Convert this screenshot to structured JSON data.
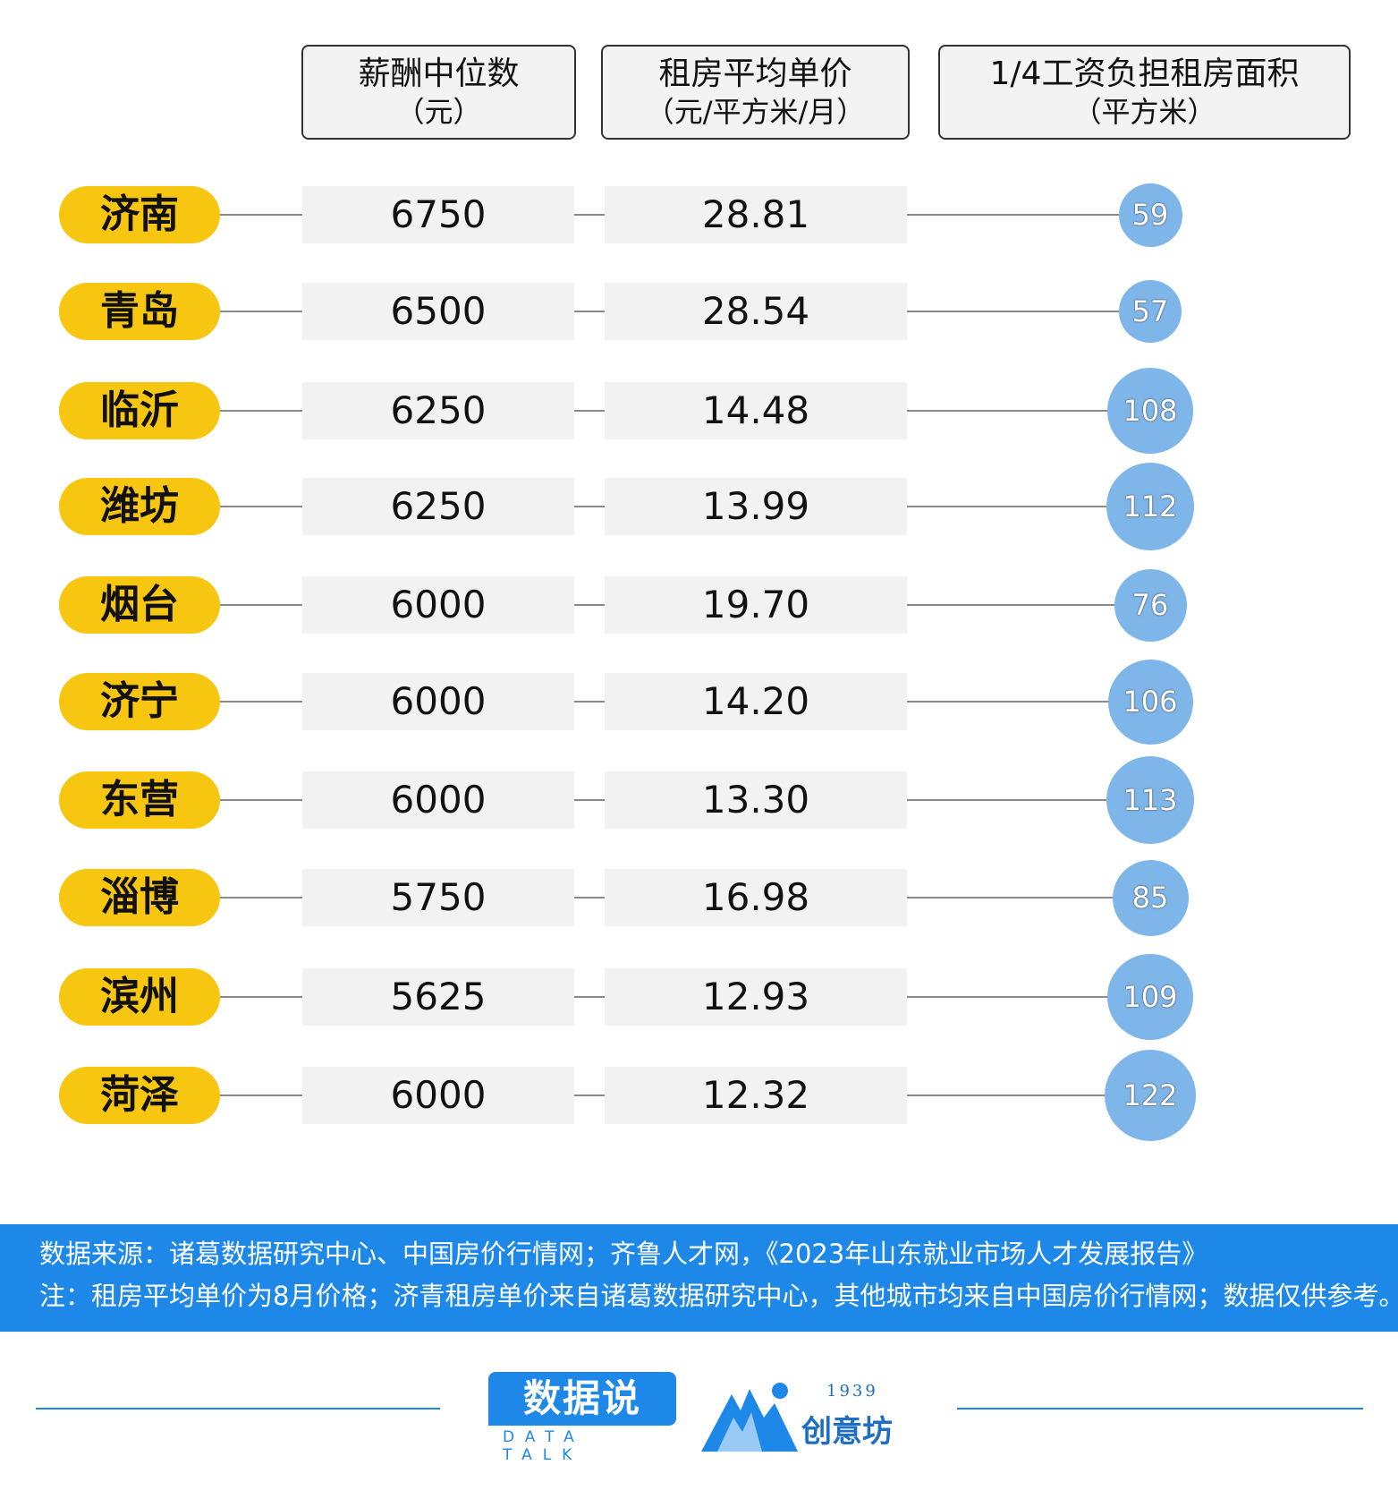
{
  "headers": {
    "salary": {
      "line1": "薪酬中位数",
      "line2": "（元）"
    },
    "rent": {
      "line1": "租房平均单价",
      "line2": "（元/平方米/月）"
    },
    "area": {
      "line1": "1/4工资负担租房面积",
      "line2": "（平方米）"
    }
  },
  "chart_data": {
    "type": "table",
    "columns": [
      "薪酬中位数（元）",
      "租房平均单价（元/平方米/月）",
      "1/4工资负担租房面积（平方米）"
    ],
    "rows": [
      {
        "city": "济南",
        "salary": "6750",
        "rent": "28.81",
        "area": 59
      },
      {
        "city": "青岛",
        "salary": "6500",
        "rent": "28.54",
        "area": 57
      },
      {
        "city": "临沂",
        "salary": "6250",
        "rent": "14.48",
        "area": 108
      },
      {
        "city": "潍坊",
        "salary": "6250",
        "rent": "13.99",
        "area": 112
      },
      {
        "city": "烟台",
        "salary": "6000",
        "rent": "19.70",
        "area": 76
      },
      {
        "city": "济宁",
        "salary": "6000",
        "rent": "14.20",
        "area": 106
      },
      {
        "city": "东营",
        "salary": "6000",
        "rent": "13.30",
        "area": 113
      },
      {
        "city": "淄博",
        "salary": "5750",
        "rent": "16.98",
        "area": 85
      },
      {
        "city": "滨州",
        "salary": "5625",
        "rent": "12.93",
        "area": 109
      },
      {
        "city": "菏泽",
        "salary": "6000",
        "rent": "12.32",
        "area": 122
      }
    ],
    "colors": {
      "city_pill": "#f7c610",
      "bubble": "#7eb6ea",
      "footer": "#1e88e8"
    }
  },
  "footer": {
    "source": "数据来源：诸葛数据研究中心、中国房价行情网；齐鲁人才网，《2023年山东就业市场人才发展报告》",
    "note": "注：租房平均单价为8月价格；济青租房单价来自诸葛数据研究中心，其他城市均来自中国房价行情网；数据仅供参考。"
  },
  "logos": {
    "data_talk": {
      "name": "数据说",
      "sub": "DATA TALK"
    },
    "chuangyi": {
      "year": "1939",
      "name": "创意坊"
    }
  }
}
